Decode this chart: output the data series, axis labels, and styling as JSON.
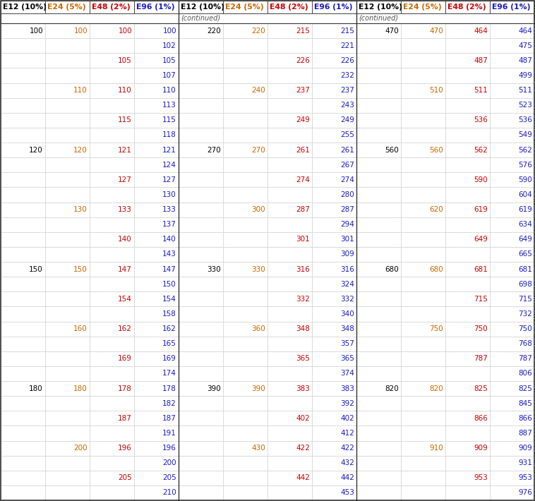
{
  "col_headers": [
    "E12 (10%)",
    "E24 (5%)",
    "E48 (2%)",
    "E96 (1%)"
  ],
  "bg_color": "#ffffff",
  "border_color": "#333333",
  "grid_color": "#cccccc",
  "subheader_color": "#555555",
  "e12_color": "#000000",
  "e24_color": "#cc6600",
  "e48_color": "#cc0000",
  "e96_color": "#1a1acc",
  "font_size": 7.5,
  "header_font_size": 7.8,
  "subheader_font_size": 7.0,
  "section_continued_label": "(continued)",
  "rows": [
    [
      "100",
      "100",
      "100",
      "100"
    ],
    [
      "",
      "",
      "",
      "102"
    ],
    [
      "",
      "",
      "105",
      "105"
    ],
    [
      "",
      "",
      "",
      "107"
    ],
    [
      "",
      "110",
      "110",
      "110"
    ],
    [
      "",
      "",
      "",
      "113"
    ],
    [
      "",
      "",
      "115",
      "115"
    ],
    [
      "",
      "",
      "",
      "118"
    ],
    [
      "120",
      "120",
      "121",
      "121"
    ],
    [
      "",
      "",
      "",
      "124"
    ],
    [
      "",
      "",
      "127",
      "127"
    ],
    [
      "",
      "",
      "",
      "130"
    ],
    [
      "",
      "130",
      "133",
      "133"
    ],
    [
      "",
      "",
      "",
      "137"
    ],
    [
      "",
      "",
      "140",
      "140"
    ],
    [
      "",
      "",
      "",
      "143"
    ],
    [
      "150",
      "150",
      "147",
      "147"
    ],
    [
      "",
      "",
      "",
      "150"
    ],
    [
      "",
      "",
      "154",
      "154"
    ],
    [
      "",
      "",
      "",
      "158"
    ],
    [
      "",
      "160",
      "162",
      "162"
    ],
    [
      "",
      "",
      "",
      "165"
    ],
    [
      "",
      "",
      "169",
      "169"
    ],
    [
      "",
      "",
      "",
      "174"
    ],
    [
      "180",
      "180",
      "178",
      "178"
    ],
    [
      "",
      "",
      "",
      "182"
    ],
    [
      "",
      "",
      "187",
      "187"
    ],
    [
      "",
      "",
      "",
      "191"
    ],
    [
      "",
      "200",
      "196",
      "196"
    ],
    [
      "",
      "",
      "",
      "200"
    ],
    [
      "",
      "",
      "205",
      "205"
    ],
    [
      "",
      "",
      "",
      "210"
    ]
  ],
  "rows2": [
    [
      "220",
      "220",
      "215",
      "215"
    ],
    [
      "",
      "",
      "",
      "221"
    ],
    [
      "",
      "",
      "226",
      "226"
    ],
    [
      "",
      "",
      "",
      "232"
    ],
    [
      "",
      "240",
      "237",
      "237"
    ],
    [
      "",
      "",
      "",
      "243"
    ],
    [
      "",
      "",
      "249",
      "249"
    ],
    [
      "",
      "",
      "",
      "255"
    ],
    [
      "270",
      "270",
      "261",
      "261"
    ],
    [
      "",
      "",
      "",
      "267"
    ],
    [
      "",
      "",
      "274",
      "274"
    ],
    [
      "",
      "",
      "",
      "280"
    ],
    [
      "",
      "300",
      "287",
      "287"
    ],
    [
      "",
      "",
      "",
      "294"
    ],
    [
      "",
      "",
      "301",
      "301"
    ],
    [
      "",
      "",
      "",
      "309"
    ],
    [
      "330",
      "330",
      "316",
      "316"
    ],
    [
      "",
      "",
      "",
      "324"
    ],
    [
      "",
      "",
      "332",
      "332"
    ],
    [
      "",
      "",
      "",
      "340"
    ],
    [
      "",
      "360",
      "348",
      "348"
    ],
    [
      "",
      "",
      "",
      "357"
    ],
    [
      "",
      "",
      "365",
      "365"
    ],
    [
      "",
      "",
      "",
      "374"
    ],
    [
      "390",
      "390",
      "383",
      "383"
    ],
    [
      "",
      "",
      "",
      "392"
    ],
    [
      "",
      "",
      "402",
      "402"
    ],
    [
      "",
      "",
      "",
      "412"
    ],
    [
      "",
      "430",
      "422",
      "422"
    ],
    [
      "",
      "",
      "",
      "432"
    ],
    [
      "",
      "",
      "442",
      "442"
    ],
    [
      "",
      "",
      "",
      "453"
    ]
  ],
  "rows3": [
    [
      "470",
      "470",
      "464",
      "464"
    ],
    [
      "",
      "",
      "",
      "475"
    ],
    [
      "",
      "",
      "487",
      "487"
    ],
    [
      "",
      "",
      "",
      "499"
    ],
    [
      "",
      "510",
      "511",
      "511"
    ],
    [
      "",
      "",
      "",
      "523"
    ],
    [
      "",
      "",
      "536",
      "536"
    ],
    [
      "",
      "",
      "",
      "549"
    ],
    [
      "560",
      "560",
      "562",
      "562"
    ],
    [
      "",
      "",
      "",
      "576"
    ],
    [
      "",
      "",
      "590",
      "590"
    ],
    [
      "",
      "",
      "",
      "604"
    ],
    [
      "",
      "620",
      "619",
      "619"
    ],
    [
      "",
      "",
      "",
      "634"
    ],
    [
      "",
      "",
      "649",
      "649"
    ],
    [
      "",
      "",
      "",
      "665"
    ],
    [
      "680",
      "680",
      "681",
      "681"
    ],
    [
      "",
      "",
      "",
      "698"
    ],
    [
      "",
      "",
      "715",
      "715"
    ],
    [
      "",
      "",
      "",
      "732"
    ],
    [
      "",
      "750",
      "750",
      "750"
    ],
    [
      "",
      "",
      "",
      "768"
    ],
    [
      "",
      "",
      "787",
      "787"
    ],
    [
      "",
      "",
      "",
      "806"
    ],
    [
      "820",
      "820",
      "825",
      "825"
    ],
    [
      "",
      "",
      "",
      "845"
    ],
    [
      "",
      "",
      "866",
      "866"
    ],
    [
      "",
      "",
      "",
      "887"
    ],
    [
      "",
      "910",
      "909",
      "909"
    ],
    [
      "",
      "",
      "",
      "931"
    ],
    [
      "",
      "",
      "953",
      "953"
    ],
    [
      "",
      "",
      "",
      "976"
    ]
  ]
}
